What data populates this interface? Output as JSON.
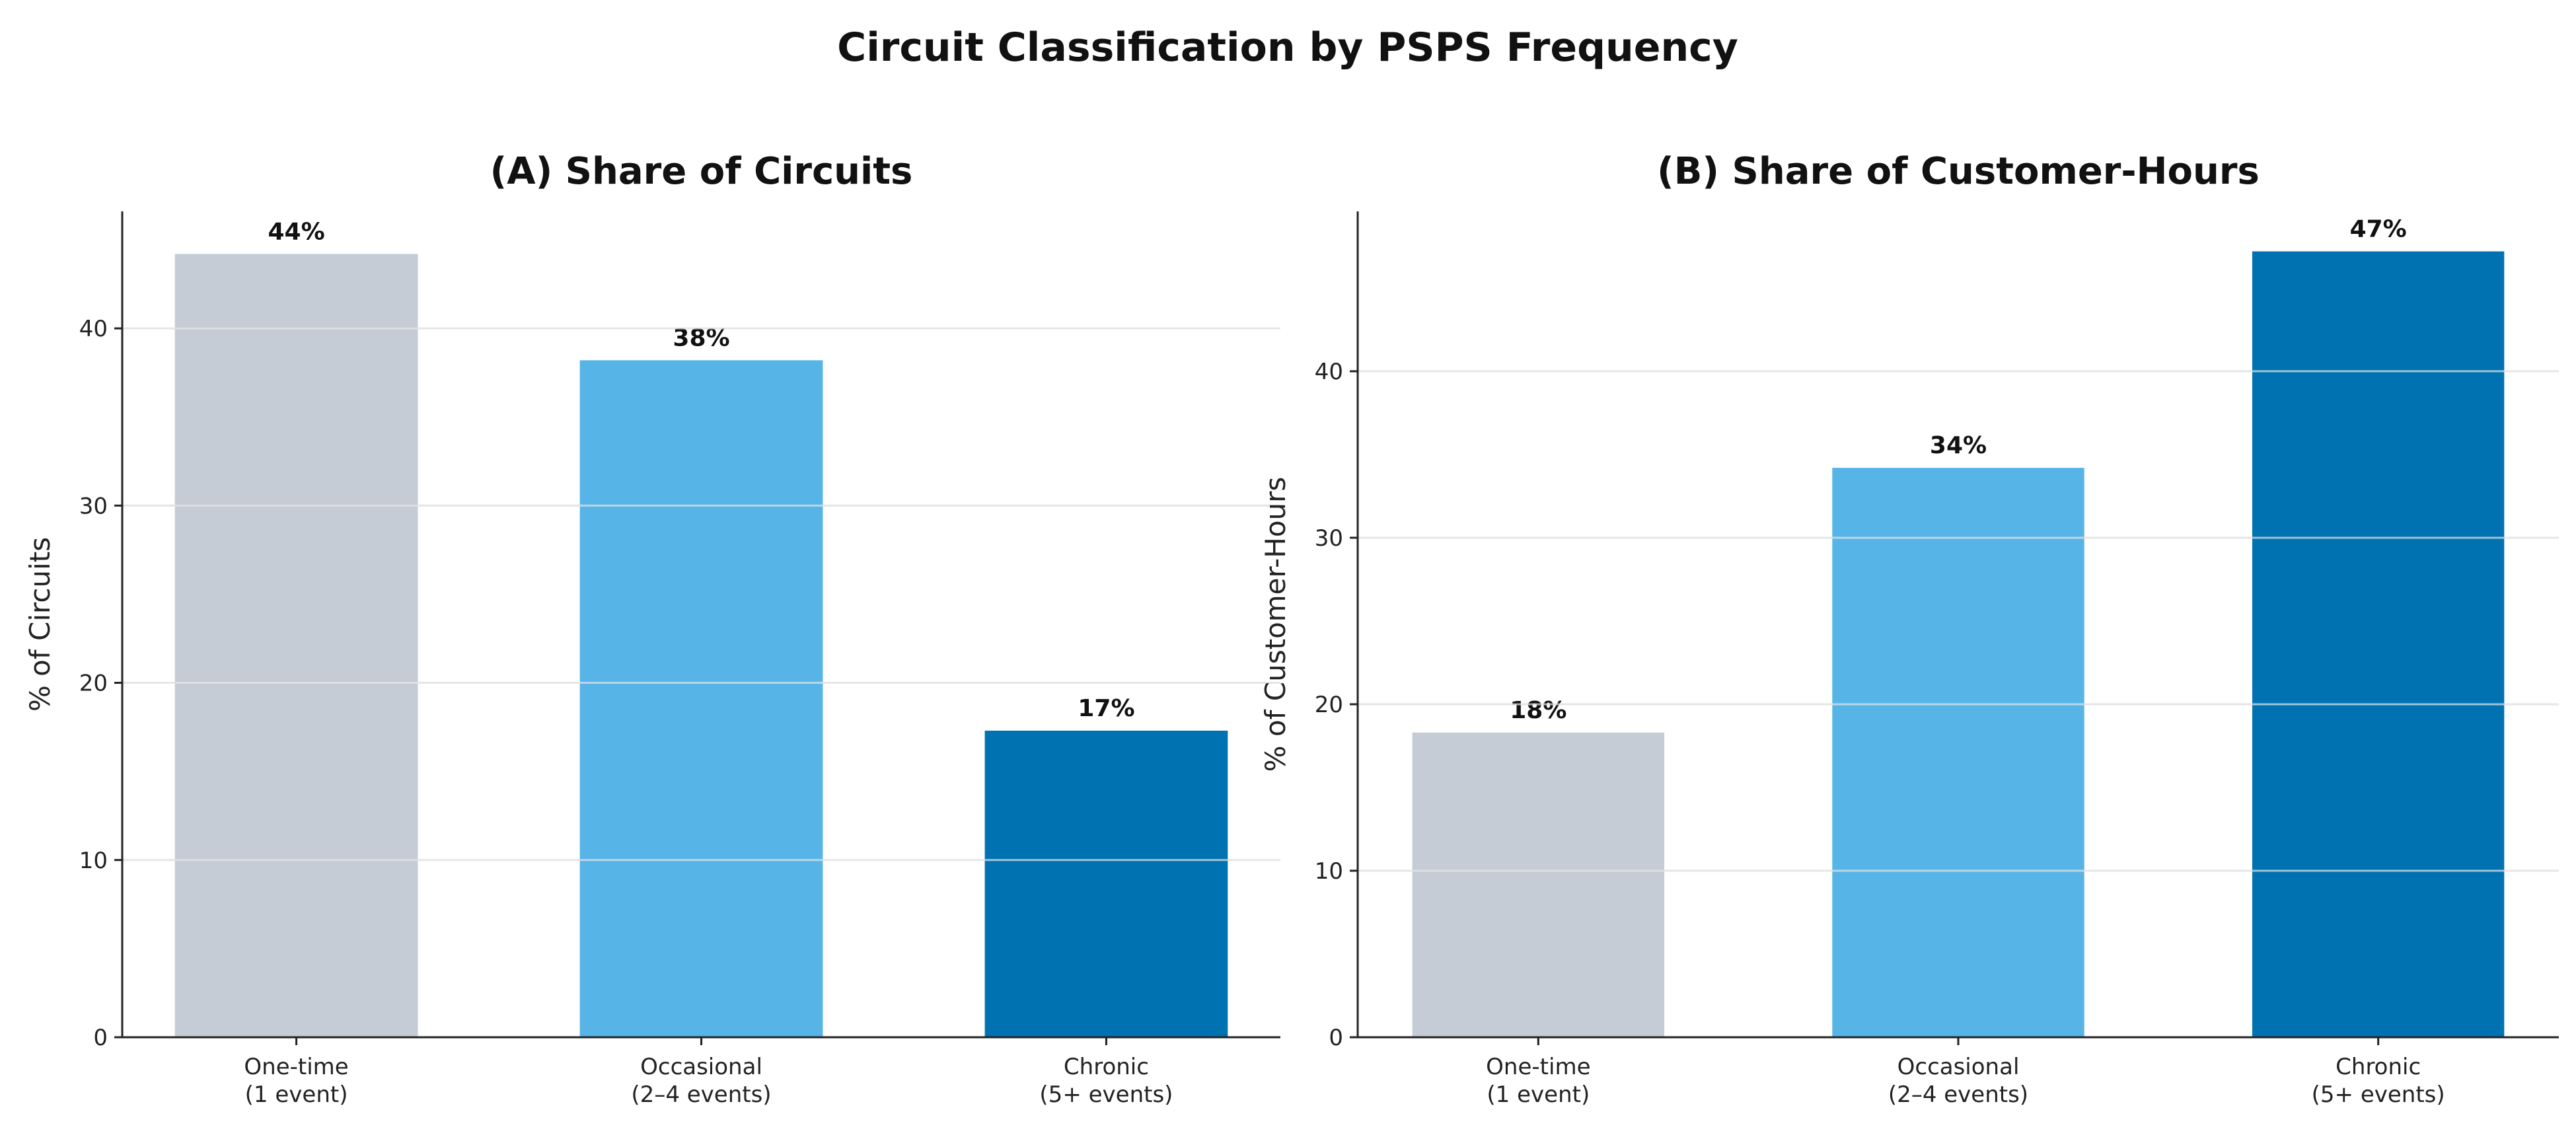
{
  "title": "Circuit Classification by PSPS Frequency",
  "colors": [
    "#C5CCD6",
    "#56B4E7",
    "#0072B2"
  ],
  "chart_data": [
    {
      "type": "bar",
      "title": "(A) Share of Circuits",
      "xlabel": "",
      "ylabel": "% of Circuits",
      "categories": [
        [
          "One-time",
          "(1 event)"
        ],
        [
          "Occasional",
          "(2–4 events)"
        ],
        [
          "Chronic",
          "(5+ events)"
        ]
      ],
      "values": [
        44.2,
        38.2,
        17.3
      ],
      "data_labels": [
        "44%",
        "38%",
        "17%"
      ],
      "ylim": [
        0,
        46.6
      ],
      "yticks": [
        0,
        10,
        20,
        30,
        40
      ],
      "grid": "y"
    },
    {
      "type": "bar",
      "title": "(B) Share of Customer-Hours",
      "xlabel": "",
      "ylabel": "% of Customer-Hours",
      "categories": [
        [
          "One-time",
          "(1 event)"
        ],
        [
          "Occasional",
          "(2–4 events)"
        ],
        [
          "Chronic",
          "(5+ events)"
        ]
      ],
      "values": [
        18.3,
        34.2,
        47.2
      ],
      "data_labels": [
        "18%",
        "34%",
        "47%"
      ],
      "ylim": [
        0,
        49.6
      ],
      "yticks": [
        0,
        10,
        20,
        30,
        40
      ],
      "grid": "y"
    }
  ]
}
